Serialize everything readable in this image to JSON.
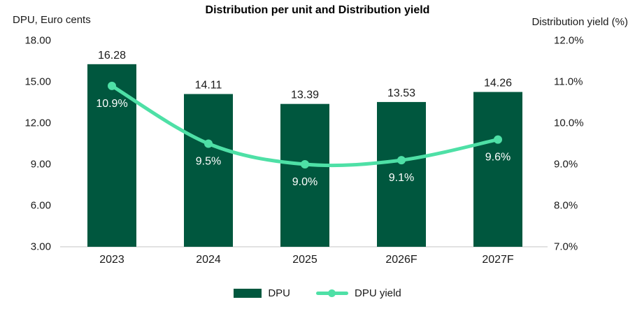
{
  "chart_data": {
    "type": "bar+line",
    "title": "Distribution per unit and Distribution yield",
    "categories": [
      "2023",
      "2024",
      "2025",
      "2026F",
      "2027F"
    ],
    "series": [
      {
        "name": "DPU",
        "type": "bar",
        "axis": "left",
        "values": [
          16.28,
          14.11,
          13.39,
          13.53,
          14.26
        ],
        "labels": [
          "16.28",
          "14.11",
          "13.39",
          "13.53",
          "14.26"
        ]
      },
      {
        "name": "DPU yield",
        "type": "line",
        "axis": "right",
        "values": [
          10.9,
          9.5,
          9.0,
          9.1,
          9.6
        ],
        "labels": [
          "10.9%",
          "9.5%",
          "9.0%",
          "9.1%",
          "9.6%"
        ]
      }
    ],
    "left_axis": {
      "label": "DPU, Euro cents",
      "min": 3,
      "max": 18,
      "ticks": [
        "18.00",
        "15.00",
        "12.00",
        "9.00",
        "6.00",
        "3.00"
      ]
    },
    "right_axis": {
      "label": "Distribution yield (%)",
      "min": 7,
      "max": 12,
      "ticks": [
        "12.0%",
        "11.0%",
        "10.0%",
        "9.0%",
        "8.0%",
        "7.0%"
      ]
    },
    "legend": [
      {
        "label": "DPU",
        "marker": "bar"
      },
      {
        "label": "DPU yield",
        "marker": "line"
      }
    ],
    "grid": false,
    "legend_position": "bottom",
    "colors": {
      "bar": "#00573E",
      "line": "#4EE0A6",
      "axis_line": "#D9D9D9",
      "text": "#1A1A1A",
      "label_on_bar": "#FFFFFF"
    }
  }
}
